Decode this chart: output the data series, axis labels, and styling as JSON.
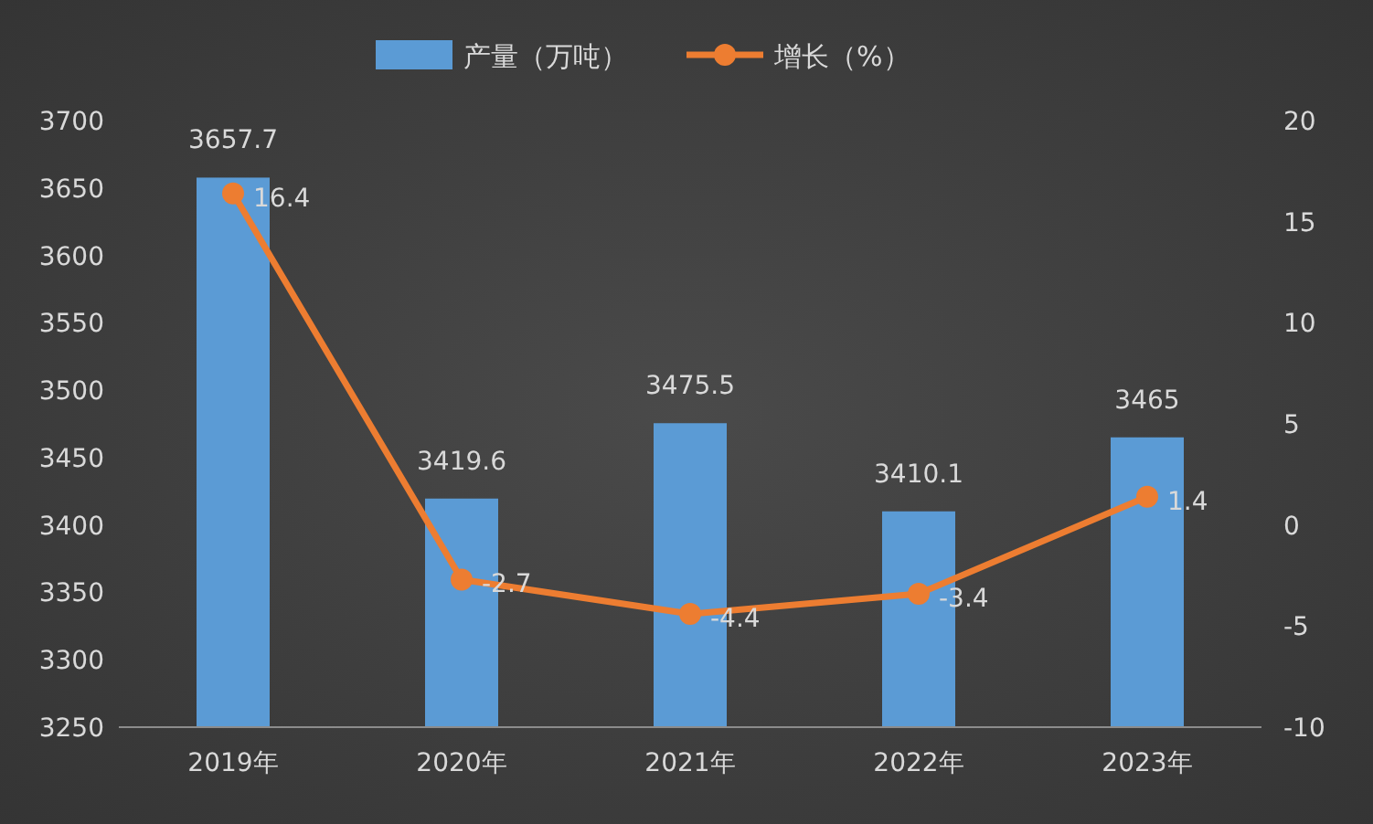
{
  "chart_data": {
    "type": "bar",
    "categories": [
      "2019年",
      "2020年",
      "2021年",
      "2022年",
      "2023年"
    ],
    "series": [
      {
        "name": "产量（万吨）",
        "color": "#5b9bd5",
        "values": [
          3657.7,
          3419.6,
          3475.5,
          3410.1,
          3465
        ]
      },
      {
        "name": "增长（%）",
        "type": "line",
        "axis": "y2",
        "color": "#ed7d31",
        "values": [
          16.4,
          -2.7,
          -4.4,
          -3.4,
          1.4
        ]
      }
    ],
    "ylim": [
      3250,
      3700
    ],
    "yticks": [
      3250,
      3300,
      3350,
      3400,
      3450,
      3500,
      3550,
      3600,
      3650,
      3700
    ],
    "y2lim": [
      -10,
      20
    ],
    "y2ticks": [
      -10,
      -5,
      0,
      5,
      10,
      15,
      20
    ],
    "legend": "top",
    "marker": "circle",
    "data_labels": true
  }
}
